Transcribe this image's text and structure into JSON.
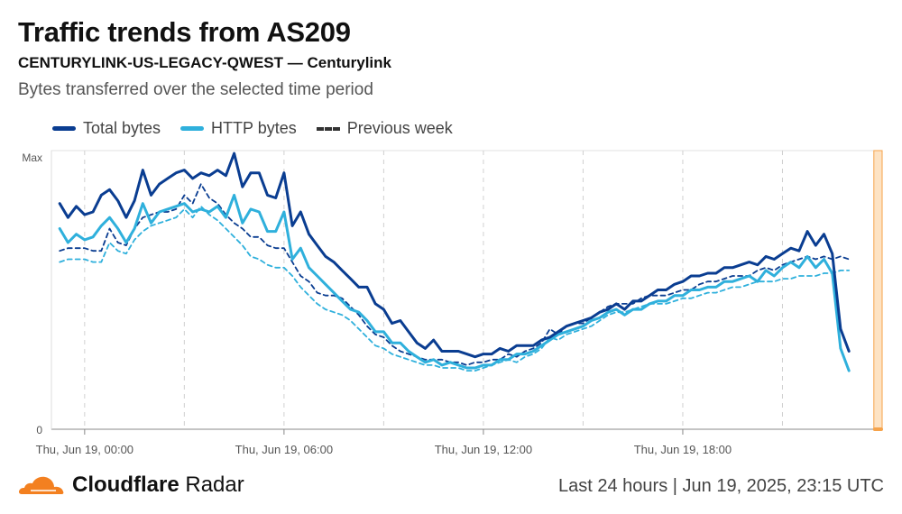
{
  "header": {
    "title": "Traffic trends from AS209",
    "subtitle": "CENTURYLINK-US-LEGACY-QWEST — Centurylink",
    "description": "Bytes transferred over the selected time period"
  },
  "legend": {
    "items": [
      {
        "label": "Total bytes",
        "color": "#0a3d91",
        "style": "solid"
      },
      {
        "label": "HTTP bytes",
        "color": "#2fb0dc",
        "style": "solid"
      },
      {
        "label": "Previous week",
        "color": "#333333",
        "style": "dashed"
      }
    ]
  },
  "footer": {
    "brand_bold": "Cloudflare",
    "brand_light": "Radar",
    "meta": "Last 24 hours | Jun 19, 2025, 23:15 UTC"
  },
  "colors": {
    "total": "#0a3d91",
    "http": "#2fb0dc",
    "prev_total": "#0a3d91",
    "prev_http": "#2fb0dc",
    "highlight": "#fde3c4",
    "highlight_edge": "#f6a34a",
    "logo": "#f38020"
  },
  "chart_data": {
    "type": "line",
    "ylabel": "",
    "xlabel": "",
    "ylim": [
      0,
      1
    ],
    "ytick_labels": [
      "0",
      "Max"
    ],
    "xlim_hours": [
      -1,
      24
    ],
    "xtick_hours": [
      0,
      6,
      12,
      18
    ],
    "xtick_labels": [
      "Thu, Jun 19, 00:00",
      "Thu, Jun 19, 06:00",
      "Thu, Jun 19, 12:00",
      "Thu, Jun 19, 18:00"
    ],
    "grid": "vertical dashed",
    "highlight_range_hours": [
      23.75,
      24
    ],
    "series": [
      {
        "name": "Total bytes",
        "style": "solid",
        "x_hours_start": -0.75,
        "x_step_hours": 0.25,
        "values": [
          0.81,
          0.76,
          0.8,
          0.77,
          0.78,
          0.84,
          0.86,
          0.82,
          0.76,
          0.82,
          0.93,
          0.84,
          0.88,
          0.9,
          0.92,
          0.93,
          0.9,
          0.92,
          0.91,
          0.93,
          0.91,
          0.99,
          0.87,
          0.92,
          0.92,
          0.84,
          0.83,
          0.92,
          0.73,
          0.78,
          0.7,
          0.66,
          0.62,
          0.6,
          0.57,
          0.54,
          0.51,
          0.51,
          0.45,
          0.43,
          0.38,
          0.39,
          0.35,
          0.31,
          0.29,
          0.32,
          0.28,
          0.28,
          0.28,
          0.27,
          0.26,
          0.27,
          0.27,
          0.29,
          0.28,
          0.3,
          0.3,
          0.3,
          0.32,
          0.33,
          0.35,
          0.37,
          0.38,
          0.39,
          0.4,
          0.42,
          0.43,
          0.45,
          0.43,
          0.46,
          0.46,
          0.48,
          0.5,
          0.5,
          0.52,
          0.53,
          0.55,
          0.55,
          0.56,
          0.56,
          0.58,
          0.58,
          0.59,
          0.6,
          0.59,
          0.62,
          0.61,
          0.63,
          0.65,
          0.64,
          0.71,
          0.66,
          0.7,
          0.63,
          0.36,
          0.28
        ]
      },
      {
        "name": "HTTP bytes",
        "style": "solid",
        "x_hours_start": -0.75,
        "x_step_hours": 0.25,
        "values": [
          0.72,
          0.67,
          0.7,
          0.68,
          0.69,
          0.73,
          0.76,
          0.72,
          0.67,
          0.72,
          0.81,
          0.74,
          0.78,
          0.79,
          0.8,
          0.81,
          0.78,
          0.79,
          0.78,
          0.8,
          0.76,
          0.84,
          0.74,
          0.79,
          0.78,
          0.71,
          0.71,
          0.78,
          0.61,
          0.65,
          0.58,
          0.55,
          0.52,
          0.49,
          0.46,
          0.43,
          0.42,
          0.39,
          0.35,
          0.35,
          0.31,
          0.31,
          0.28,
          0.26,
          0.24,
          0.25,
          0.23,
          0.24,
          0.23,
          0.22,
          0.22,
          0.23,
          0.23,
          0.25,
          0.25,
          0.27,
          0.27,
          0.28,
          0.3,
          0.32,
          0.34,
          0.35,
          0.36,
          0.37,
          0.39,
          0.4,
          0.42,
          0.43,
          0.41,
          0.43,
          0.43,
          0.45,
          0.46,
          0.46,
          0.48,
          0.48,
          0.5,
          0.5,
          0.51,
          0.51,
          0.53,
          0.53,
          0.54,
          0.55,
          0.53,
          0.57,
          0.55,
          0.58,
          0.6,
          0.58,
          0.62,
          0.58,
          0.61,
          0.56,
          0.29,
          0.21
        ]
      },
      {
        "name": "Previous week (Total)",
        "style": "dashed",
        "x_hours_start": -0.75,
        "x_step_hours": 0.25,
        "values": [
          0.64,
          0.65,
          0.65,
          0.65,
          0.64,
          0.64,
          0.72,
          0.67,
          0.66,
          0.72,
          0.76,
          0.77,
          0.78,
          0.78,
          0.79,
          0.84,
          0.81,
          0.88,
          0.83,
          0.81,
          0.77,
          0.74,
          0.72,
          0.69,
          0.69,
          0.66,
          0.65,
          0.65,
          0.6,
          0.55,
          0.53,
          0.49,
          0.48,
          0.48,
          0.47,
          0.44,
          0.41,
          0.37,
          0.34,
          0.33,
          0.3,
          0.28,
          0.27,
          0.26,
          0.25,
          0.25,
          0.25,
          0.24,
          0.24,
          0.23,
          0.24,
          0.24,
          0.25,
          0.25,
          0.27,
          0.26,
          0.28,
          0.29,
          0.31,
          0.36,
          0.34,
          0.37,
          0.38,
          0.38,
          0.4,
          0.42,
          0.44,
          0.45,
          0.45,
          0.45,
          0.47,
          0.48,
          0.48,
          0.48,
          0.49,
          0.5,
          0.5,
          0.52,
          0.53,
          0.53,
          0.54,
          0.55,
          0.55,
          0.55,
          0.57,
          0.58,
          0.57,
          0.59,
          0.6,
          0.61,
          0.62,
          0.61,
          0.62,
          0.61,
          0.62,
          0.61
        ]
      },
      {
        "name": "Previous week (HTTP)",
        "style": "dashed",
        "x_hours_start": -0.75,
        "x_step_hours": 0.25,
        "values": [
          0.6,
          0.61,
          0.61,
          0.61,
          0.6,
          0.6,
          0.67,
          0.64,
          0.63,
          0.68,
          0.71,
          0.73,
          0.74,
          0.75,
          0.76,
          0.79,
          0.76,
          0.8,
          0.77,
          0.75,
          0.72,
          0.69,
          0.66,
          0.62,
          0.61,
          0.59,
          0.58,
          0.58,
          0.55,
          0.51,
          0.48,
          0.45,
          0.43,
          0.42,
          0.41,
          0.39,
          0.36,
          0.33,
          0.3,
          0.29,
          0.27,
          0.26,
          0.25,
          0.24,
          0.23,
          0.23,
          0.22,
          0.22,
          0.22,
          0.21,
          0.21,
          0.22,
          0.23,
          0.24,
          0.25,
          0.24,
          0.26,
          0.27,
          0.29,
          0.33,
          0.32,
          0.34,
          0.35,
          0.36,
          0.37,
          0.39,
          0.41,
          0.42,
          0.42,
          0.43,
          0.44,
          0.45,
          0.45,
          0.45,
          0.46,
          0.47,
          0.47,
          0.48,
          0.49,
          0.49,
          0.5,
          0.51,
          0.51,
          0.52,
          0.53,
          0.53,
          0.53,
          0.54,
          0.54,
          0.55,
          0.55,
          0.55,
          0.56,
          0.56,
          0.57,
          0.57
        ]
      }
    ]
  }
}
